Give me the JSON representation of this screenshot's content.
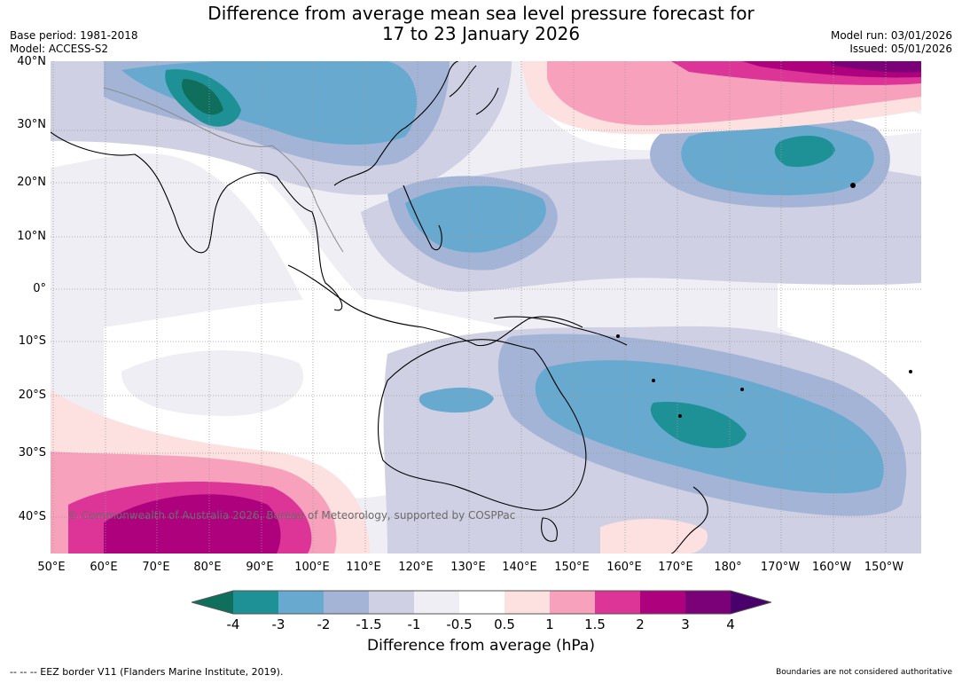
{
  "header": {
    "title_line1": "Difference from average mean sea level pressure forecast for",
    "title_line2": "17 to 23 January 2026",
    "base_period": "Base period: 1981-2018",
    "model": "Model: ACCESS-S2",
    "model_run": "Model run: 03/01/2026",
    "issued": "Issued: 05/01/2026"
  },
  "map": {
    "lat_labels": [
      "40°N",
      "30°N",
      "20°N",
      "10°N",
      "0°",
      "10°S",
      "20°S",
      "30°S",
      "40°S"
    ],
    "lon_labels": [
      "50°E",
      "60°E",
      "70°E",
      "80°E",
      "90°E",
      "100°E",
      "110°E",
      "120°E",
      "130°E",
      "140°E",
      "150°E",
      "160°E",
      "170°E",
      "180°",
      "170°W",
      "160°W",
      "150°W"
    ],
    "copyright": "© Commonwealth of Australia 2026, Bureau of Meteorology, supported by COSPPac"
  },
  "legend": {
    "ticks": [
      "-4",
      "-3",
      "-2",
      "-1.5",
      "-1",
      "-0.5",
      "0.5",
      "1",
      "1.5",
      "2",
      "3",
      "4"
    ],
    "colors": [
      "#0f6e5c",
      "#1e9196",
      "#67a9cf",
      "#a3b4d6",
      "#cfd0e3",
      "#f0eef5",
      "#ffffff",
      "#fde0e0",
      "#f7a1bc",
      "#dd3497",
      "#ae017e",
      "#7a0177",
      "#4a006a"
    ],
    "label": "Difference from average (hPa)"
  },
  "footer": {
    "eez": "--  --  -- EEZ border V11 (Flanders Marine Institute, 2019).",
    "disclaimer": "Boundaries are not considered authoritative"
  }
}
